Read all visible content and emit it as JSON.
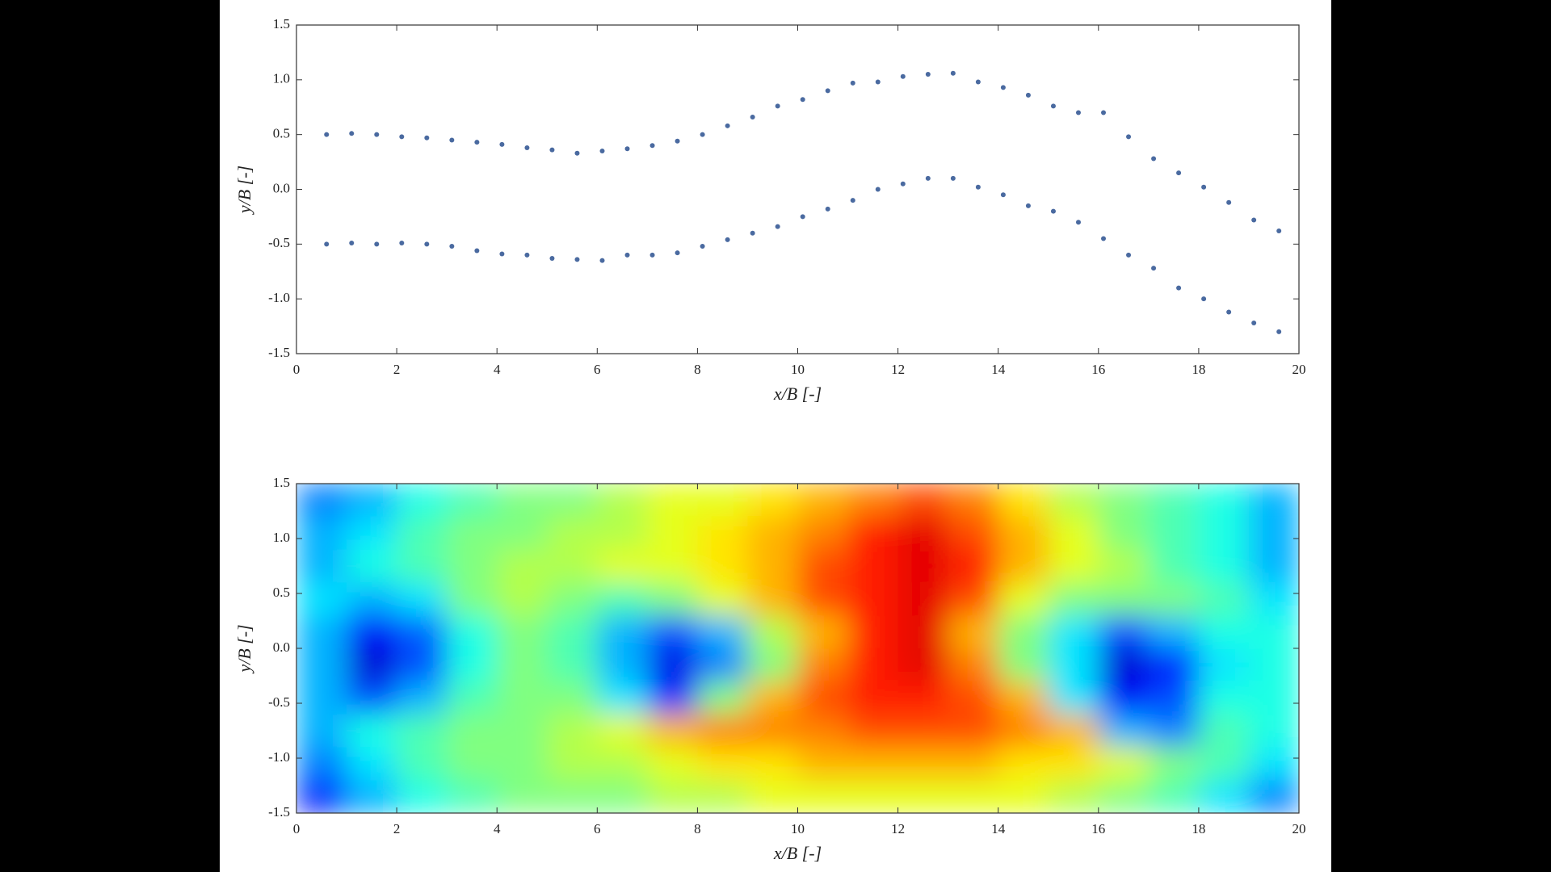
{
  "chart_data": [
    {
      "type": "scatter",
      "xlabel": "x/B [-]",
      "ylabel": "y/B [-]",
      "xlim": [
        0,
        20
      ],
      "ylim": [
        -1.5,
        1.5
      ],
      "xticks": [
        0,
        2,
        4,
        6,
        8,
        10,
        12,
        14,
        16,
        18,
        20
      ],
      "yticks": [
        -1.5,
        {
          "value": -1,
          "label": "-1.0"
        },
        -0.5,
        {
          "value": 0,
          "label": "0.0"
        },
        0.5,
        {
          "value": 1,
          "label": "1.0"
        },
        1.5
      ],
      "x": [
        0.6,
        1.1,
        1.6,
        2.1,
        2.6,
        3.1,
        3.6,
        4.1,
        4.6,
        5.1,
        5.6,
        6.1,
        6.6,
        7.1,
        7.6,
        8.1,
        8.6,
        9.1,
        9.6,
        10.1,
        10.6,
        11.1,
        11.6,
        12.1,
        12.6,
        13.1,
        13.6,
        14.1,
        14.6,
        15.1,
        15.6,
        16.1,
        16.6,
        17.1,
        17.6,
        18.1,
        18.6,
        19.1,
        19.6
      ],
      "series": [
        {
          "color": "#4a6aa0",
          "values": [
            0.5,
            0.51,
            0.5,
            0.48,
            0.47,
            0.45,
            0.43,
            0.41,
            0.38,
            0.36,
            0.33,
            0.35,
            0.37,
            0.4,
            0.44,
            0.5,
            0.58,
            0.66,
            0.76,
            0.82,
            0.9,
            0.97,
            0.98,
            1.03,
            1.05,
            1.06,
            0.98,
            0.93,
            0.86,
            0.76,
            0.7,
            0.7,
            0.48,
            0.28,
            0.15,
            0.02,
            -0.12,
            -0.28,
            -0.38
          ]
        },
        {
          "color": "#4a6aa0",
          "values": [
            -0.5,
            -0.49,
            -0.5,
            -0.49,
            -0.5,
            -0.52,
            -0.56,
            -0.59,
            -0.6,
            -0.63,
            -0.64,
            -0.65,
            -0.6,
            -0.6,
            -0.58,
            -0.52,
            -0.46,
            -0.4,
            -0.34,
            -0.25,
            -0.18,
            -0.1,
            0.0,
            0.05,
            0.1,
            0.1,
            0.02,
            -0.05,
            -0.15,
            -0.2,
            -0.3,
            -0.45,
            -0.6,
            -0.72,
            -0.9,
            -1.0,
            -1.12,
            -1.22,
            -1.3
          ]
        }
      ]
    },
    {
      "type": "heatmap",
      "xlabel": "x/B [-]",
      "ylabel": "y/B [-]",
      "xlim": [
        0,
        20
      ],
      "ylim": [
        -1.5,
        1.5
      ],
      "xticks": [
        0,
        2,
        4,
        6,
        8,
        10,
        12,
        14,
        16,
        18,
        20
      ],
      "yticks": [
        -1.5,
        {
          "value": -1,
          "label": "-1.0"
        },
        -0.5,
        {
          "value": 0,
          "label": "0.0"
        },
        0.5,
        {
          "value": 1,
          "label": "1.0"
        },
        1.5
      ],
      "colormap": "jet",
      "xbins": [
        0,
        1,
        2,
        3,
        4,
        5,
        6,
        7,
        8,
        9,
        10,
        11,
        12,
        13,
        14,
        15,
        16,
        17,
        18,
        19,
        20
      ],
      "ybins": [
        1.5,
        1.2,
        0.9,
        0.6,
        0.3,
        0,
        -0.3,
        -0.6,
        -0.9,
        -1.2,
        -1.5
      ],
      "z": [
        [
          0.25,
          0.3,
          0.4,
          0.45,
          0.5,
          0.5,
          0.55,
          0.6,
          0.6,
          0.65,
          0.7,
          0.75,
          0.8,
          0.75,
          0.65,
          0.55,
          0.5,
          0.45,
          0.4,
          0.3
        ],
        [
          0.3,
          0.35,
          0.45,
          0.5,
          0.5,
          0.55,
          0.55,
          0.6,
          0.65,
          0.7,
          0.75,
          0.85,
          0.9,
          0.8,
          0.7,
          0.6,
          0.5,
          0.45,
          0.4,
          0.3
        ],
        [
          0.3,
          0.4,
          0.45,
          0.5,
          0.55,
          0.55,
          0.6,
          0.6,
          0.65,
          0.7,
          0.8,
          0.85,
          0.9,
          0.85,
          0.7,
          0.6,
          0.55,
          0.45,
          0.4,
          0.3
        ],
        [
          0.35,
          0.3,
          0.35,
          0.5,
          0.55,
          0.5,
          0.45,
          0.5,
          0.6,
          0.7,
          0.8,
          0.85,
          0.9,
          0.8,
          0.6,
          0.5,
          0.5,
          0.5,
          0.45,
          0.35
        ],
        [
          0.3,
          0.12,
          0.22,
          0.4,
          0.5,
          0.45,
          0.3,
          0.2,
          0.3,
          0.55,
          0.7,
          0.85,
          0.9,
          0.7,
          0.5,
          0.35,
          0.2,
          0.3,
          0.4,
          0.4
        ],
        [
          0.3,
          0.08,
          0.2,
          0.4,
          0.5,
          0.45,
          0.3,
          0.1,
          0.25,
          0.5,
          0.75,
          0.85,
          0.9,
          0.75,
          0.5,
          0.35,
          0.08,
          0.15,
          0.35,
          0.4
        ],
        [
          0.3,
          0.2,
          0.3,
          0.45,
          0.5,
          0.5,
          0.35,
          0.15,
          0.5,
          0.7,
          0.8,
          0.85,
          0.85,
          0.8,
          0.7,
          0.35,
          0.12,
          0.2,
          0.4,
          0.4
        ],
        [
          0.3,
          0.4,
          0.45,
          0.5,
          0.5,
          0.55,
          0.6,
          0.7,
          0.75,
          0.75,
          0.75,
          0.8,
          0.8,
          0.8,
          0.75,
          0.7,
          0.3,
          0.25,
          0.45,
          0.4
        ],
        [
          0.25,
          0.35,
          0.45,
          0.5,
          0.5,
          0.55,
          0.55,
          0.6,
          0.65,
          0.65,
          0.7,
          0.7,
          0.7,
          0.7,
          0.65,
          0.65,
          0.6,
          0.5,
          0.45,
          0.35
        ],
        [
          0.15,
          0.3,
          0.4,
          0.45,
          0.5,
          0.5,
          0.5,
          0.55,
          0.55,
          0.6,
          0.6,
          0.6,
          0.6,
          0.6,
          0.6,
          0.55,
          0.5,
          0.45,
          0.35,
          0.25
        ]
      ]
    }
  ]
}
